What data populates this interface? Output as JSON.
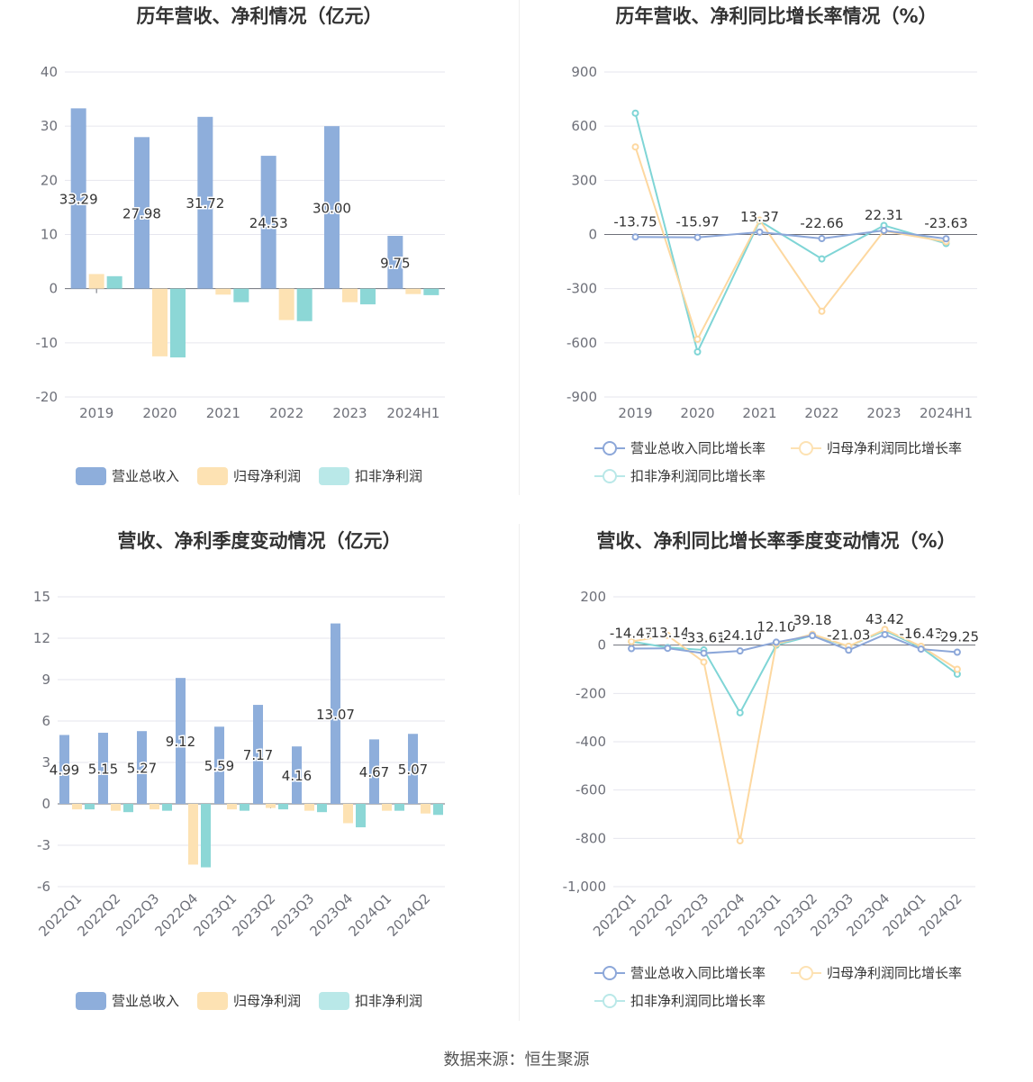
{
  "footer": "数据来源：恒生聚源",
  "colors": {
    "revenue": "#8eaedb",
    "parent_profit": "#fde2b3",
    "deducted_profit": "#8cd7d6",
    "revenue_line": "#8ca7d9",
    "parent_line": "#fdd8a0",
    "deducted_line": "#7fd5d6",
    "grid": "#e6e6ee",
    "axis_text": "#6e7079"
  },
  "chart_data": [
    {
      "id": "annual_bar",
      "type": "bar",
      "title": "历年营收、净利情况（亿元）",
      "categories": [
        "2019",
        "2020",
        "2021",
        "2022",
        "2023",
        "2024H1"
      ],
      "ylim": [
        -20,
        40
      ],
      "yticks": [
        40,
        30,
        20,
        10,
        0,
        -10,
        -20
      ],
      "grid": true,
      "legend_position": "bottom",
      "series": [
        {
          "name": "营业总收入",
          "values": [
            33.29,
            27.98,
            31.72,
            24.53,
            30.0,
            9.75
          ],
          "labels": [
            "33.29",
            "27.98",
            "31.72",
            "24.53",
            "30.00",
            "9.75"
          ]
        },
        {
          "name": "归母净利润",
          "values": [
            2.7,
            -12.5,
            -1.1,
            -5.8,
            -2.5,
            -1.0
          ]
        },
        {
          "name": "扣非净利润",
          "values": [
            2.3,
            -12.7,
            -2.5,
            -6.0,
            -2.9,
            -1.2
          ]
        }
      ]
    },
    {
      "id": "annual_line",
      "type": "line",
      "title": "历年营收、净利同比增长率情况（%）",
      "categories": [
        "2019",
        "2020",
        "2021",
        "2022",
        "2023",
        "2024H1"
      ],
      "ylim": [
        -900,
        900
      ],
      "yticks": [
        900,
        600,
        300,
        0,
        -300,
        -600,
        -900
      ],
      "grid": true,
      "legend_position": "bottom",
      "series": [
        {
          "name": "营业总收入同比增长率",
          "values": [
            -13.75,
            -15.97,
            13.37,
            -22.66,
            22.31,
            -23.63
          ],
          "labels": [
            "-13.75",
            "-15.97",
            "13.37",
            "-22.66",
            "22.31",
            "-23.63"
          ]
        },
        {
          "name": "归母净利润同比增长率",
          "values": [
            485,
            -580,
            80,
            -425,
            20,
            -40
          ]
        },
        {
          "name": "扣非净利润同比增长率",
          "values": [
            672,
            -650,
            75,
            -135,
            50,
            -50
          ]
        }
      ]
    },
    {
      "id": "quarter_bar",
      "type": "bar",
      "title": "营收、净利季度变动情况（亿元）",
      "categories": [
        "2022Q1",
        "2022Q2",
        "2022Q3",
        "2022Q4",
        "2023Q1",
        "2023Q2",
        "2023Q3",
        "2023Q4",
        "2024Q1",
        "2024Q2"
      ],
      "ylim": [
        -6,
        15
      ],
      "yticks": [
        15,
        12,
        9,
        6,
        3,
        0,
        -3,
        -6
      ],
      "grid": true,
      "legend_position": "bottom",
      "series": [
        {
          "name": "营业总收入",
          "values": [
            4.99,
            5.15,
            5.27,
            9.12,
            5.59,
            7.17,
            4.16,
            13.07,
            4.67,
            5.07
          ],
          "labels": [
            "4.99",
            "5.15",
            "5.27",
            "9.12",
            "5.59",
            "7.17",
            "4.16",
            "13.07",
            "4.67",
            "5.07"
          ]
        },
        {
          "name": "归母净利润",
          "values": [
            -0.4,
            -0.5,
            -0.4,
            -4.4,
            -0.4,
            -0.3,
            -0.5,
            -1.4,
            -0.5,
            -0.7
          ]
        },
        {
          "name": "扣非净利润",
          "values": [
            -0.4,
            -0.6,
            -0.5,
            -4.6,
            -0.5,
            -0.4,
            -0.6,
            -1.7,
            -0.5,
            -0.8
          ]
        }
      ]
    },
    {
      "id": "quarter_line",
      "type": "line",
      "title": "营收、净利同比增长率季度变动情况（%）",
      "categories": [
        "2022Q1",
        "2022Q2",
        "2022Q3",
        "2022Q4",
        "2023Q1",
        "2023Q2",
        "2023Q3",
        "2023Q4",
        "2024Q1",
        "2024Q2"
      ],
      "ylim": [
        -1000,
        200
      ],
      "yticks": [
        200,
        0,
        -200,
        -400,
        -600,
        -800,
        -1000
      ],
      "ytick_labels": [
        "200",
        "0",
        "-200",
        "-400",
        "-600",
        "-800",
        "-1,000"
      ],
      "grid": true,
      "legend_position": "bottom",
      "series": [
        {
          "name": "营业总收入同比增长率",
          "values": [
            -14.47,
            -13.14,
            -33.61,
            -24.1,
            12.1,
            39.18,
            -21.03,
            43.42,
            -16.43,
            -29.25
          ],
          "labels": [
            "-14.47",
            "-13.14",
            "-33.61",
            "-24.10",
            "12.10",
            "39.18",
            "-21.03",
            "43.42",
            "-16.43",
            "-29.25"
          ]
        },
        {
          "name": "归母净利润同比增长率",
          "values": [
            15,
            40,
            -70,
            -810,
            5,
            45,
            -5,
            65,
            -5,
            -100
          ]
        },
        {
          "name": "扣非净利润同比增长率",
          "values": [
            15,
            -10,
            -20,
            -280,
            0,
            40,
            -5,
            60,
            -10,
            -120
          ]
        }
      ]
    }
  ]
}
